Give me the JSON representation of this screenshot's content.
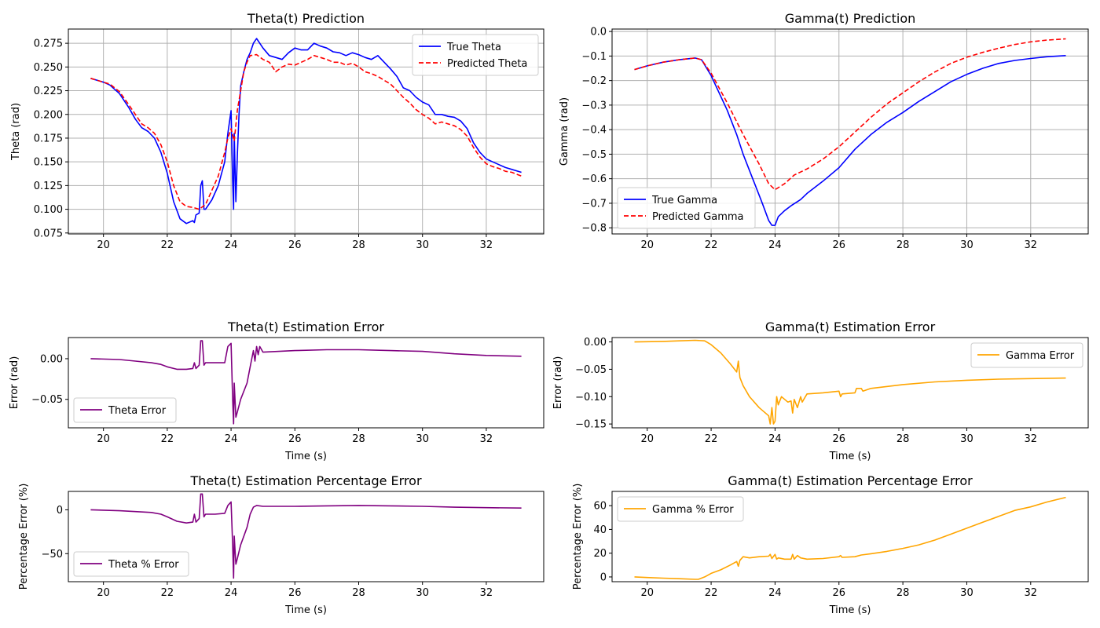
{
  "chart_data": [
    {
      "type": "line",
      "title": "Theta(t) Prediction",
      "xlabel": "",
      "ylabel": "Theta (rad)",
      "xlim": [
        18.9,
        33.8
      ],
      "ylim": [
        0.074,
        0.29
      ],
      "xticks": [
        20,
        22,
        24,
        26,
        28,
        30,
        32
      ],
      "yticks": [
        0.075,
        0.1,
        0.125,
        0.15,
        0.175,
        0.2,
        0.225,
        0.25,
        0.275
      ],
      "ytick_labels": [
        "0.075",
        "0.100",
        "0.125",
        "0.150",
        "0.175",
        "0.200",
        "0.225",
        "0.250",
        "0.275"
      ],
      "grid": true,
      "legend_position": "upper right",
      "series": [
        {
          "name": "True Theta",
          "color": "#0000ff",
          "style": "solid",
          "x": [
            19.6,
            20.0,
            20.2,
            20.5,
            20.8,
            21.0,
            21.2,
            21.4,
            21.6,
            21.8,
            22.0,
            22.2,
            22.4,
            22.6,
            22.8,
            22.85,
            22.9,
            23.0,
            23.05,
            23.1,
            23.15,
            23.2,
            23.4,
            23.6,
            23.8,
            23.9,
            24.0,
            24.05,
            24.08,
            24.1,
            24.15,
            24.2,
            24.25,
            24.3,
            24.4,
            24.5,
            24.6,
            24.7,
            24.8,
            24.9,
            25.0,
            25.2,
            25.4,
            25.6,
            25.8,
            26.0,
            26.2,
            26.4,
            26.6,
            26.8,
            27.0,
            27.2,
            27.4,
            27.6,
            27.8,
            28.0,
            28.2,
            28.4,
            28.6,
            28.8,
            29.0,
            29.2,
            29.4,
            29.6,
            29.8,
            30.0,
            30.2,
            30.4,
            30.6,
            30.8,
            31.0,
            31.2,
            31.4,
            31.6,
            31.8,
            32.0,
            32.2,
            32.4,
            32.6,
            32.8,
            33.1
          ],
          "y": [
            0.238,
            0.234,
            0.231,
            0.222,
            0.207,
            0.195,
            0.186,
            0.182,
            0.175,
            0.16,
            0.138,
            0.108,
            0.09,
            0.085,
            0.088,
            0.086,
            0.094,
            0.096,
            0.125,
            0.13,
            0.1,
            0.1,
            0.11,
            0.125,
            0.15,
            0.18,
            0.204,
            0.13,
            0.1,
            0.18,
            0.108,
            0.16,
            0.2,
            0.23,
            0.245,
            0.258,
            0.265,
            0.275,
            0.28,
            0.275,
            0.27,
            0.262,
            0.26,
            0.258,
            0.265,
            0.27,
            0.268,
            0.268,
            0.275,
            0.272,
            0.27,
            0.266,
            0.265,
            0.262,
            0.265,
            0.263,
            0.26,
            0.258,
            0.262,
            0.255,
            0.248,
            0.24,
            0.228,
            0.225,
            0.218,
            0.213,
            0.21,
            0.2,
            0.2,
            0.198,
            0.197,
            0.193,
            0.185,
            0.17,
            0.16,
            0.153,
            0.15,
            0.147,
            0.144,
            0.142,
            0.139
          ]
        },
        {
          "name": "Predicted Theta",
          "color": "#ff0000",
          "style": "dashed",
          "x": [
            19.6,
            20.0,
            20.2,
            20.5,
            20.8,
            21.0,
            21.2,
            21.4,
            21.6,
            21.8,
            22.0,
            22.2,
            22.4,
            22.6,
            22.8,
            23.0,
            23.2,
            23.4,
            23.6,
            23.8,
            23.9,
            24.0,
            24.1,
            24.2,
            24.3,
            24.4,
            24.5,
            24.6,
            24.8,
            25.0,
            25.2,
            25.4,
            25.6,
            25.8,
            26.0,
            26.2,
            26.4,
            26.6,
            26.8,
            27.0,
            27.2,
            27.4,
            27.6,
            27.8,
            28.0,
            28.2,
            28.4,
            28.6,
            28.8,
            29.0,
            29.2,
            29.4,
            29.6,
            29.8,
            30.0,
            30.2,
            30.4,
            30.6,
            30.8,
            31.0,
            31.2,
            31.4,
            31.6,
            31.8,
            32.0,
            32.2,
            32.4,
            32.6,
            32.8,
            33.1
          ],
          "y": [
            0.238,
            0.234,
            0.232,
            0.224,
            0.21,
            0.2,
            0.19,
            0.186,
            0.18,
            0.168,
            0.15,
            0.125,
            0.108,
            0.103,
            0.102,
            0.1,
            0.105,
            0.12,
            0.135,
            0.16,
            0.175,
            0.185,
            0.172,
            0.205,
            0.225,
            0.245,
            0.255,
            0.262,
            0.263,
            0.258,
            0.255,
            0.245,
            0.25,
            0.253,
            0.252,
            0.255,
            0.258,
            0.262,
            0.26,
            0.258,
            0.255,
            0.255,
            0.252,
            0.254,
            0.25,
            0.245,
            0.243,
            0.24,
            0.236,
            0.232,
            0.225,
            0.218,
            0.212,
            0.205,
            0.2,
            0.196,
            0.19,
            0.192,
            0.19,
            0.188,
            0.184,
            0.177,
            0.165,
            0.155,
            0.148,
            0.145,
            0.143,
            0.14,
            0.139,
            0.135
          ]
        }
      ]
    },
    {
      "type": "line",
      "title": "Gamma(t) Prediction",
      "xlabel": "",
      "ylabel": "Gamma (rad)",
      "xlim": [
        18.9,
        33.8
      ],
      "ylim": [
        -0.825,
        0.01
      ],
      "xticks": [
        20,
        22,
        24,
        26,
        28,
        30,
        32
      ],
      "yticks": [
        -0.8,
        -0.7,
        -0.6,
        -0.5,
        -0.4,
        -0.3,
        -0.2,
        -0.1,
        0.0
      ],
      "ytick_labels": [
        "−0.8",
        "−0.7",
        "−0.6",
        "−0.5",
        "−0.4",
        "−0.3",
        "−0.2",
        "−0.1",
        "0.0"
      ],
      "grid": true,
      "legend_position": "lower left",
      "series": [
        {
          "name": "True Gamma",
          "color": "#0000ff",
          "style": "solid",
          "x": [
            19.6,
            20.0,
            20.5,
            21.0,
            21.5,
            21.7,
            22.0,
            22.5,
            22.8,
            23.0,
            23.3,
            23.6,
            23.8,
            23.9,
            24.0,
            24.1,
            24.3,
            24.5,
            24.8,
            25.0,
            25.5,
            26.0,
            26.5,
            27.0,
            27.5,
            28.0,
            28.5,
            29.0,
            29.5,
            30.0,
            30.5,
            31.0,
            31.5,
            32.0,
            32.5,
            33.1
          ],
          "y": [
            -0.155,
            -0.14,
            -0.125,
            -0.115,
            -0.108,
            -0.115,
            -0.18,
            -0.32,
            -0.42,
            -0.5,
            -0.6,
            -0.7,
            -0.77,
            -0.79,
            -0.79,
            -0.755,
            -0.73,
            -0.71,
            -0.685,
            -0.66,
            -0.61,
            -0.555,
            -0.48,
            -0.42,
            -0.37,
            -0.33,
            -0.285,
            -0.245,
            -0.205,
            -0.175,
            -0.15,
            -0.13,
            -0.118,
            -0.11,
            -0.103,
            -0.098
          ]
        },
        {
          "name": "Predicted Gamma",
          "color": "#ff0000",
          "style": "dashed",
          "x": [
            19.6,
            20.0,
            20.5,
            21.0,
            21.5,
            21.7,
            22.0,
            22.5,
            23.0,
            23.5,
            23.8,
            24.0,
            24.3,
            24.6,
            25.0,
            25.5,
            26.0,
            26.5,
            27.0,
            27.5,
            28.0,
            28.5,
            29.0,
            29.5,
            30.0,
            30.5,
            31.0,
            31.5,
            32.0,
            32.5,
            33.1
          ],
          "y": [
            -0.155,
            -0.14,
            -0.125,
            -0.115,
            -0.108,
            -0.115,
            -0.17,
            -0.29,
            -0.42,
            -0.54,
            -0.62,
            -0.645,
            -0.62,
            -0.585,
            -0.56,
            -0.52,
            -0.47,
            -0.41,
            -0.35,
            -0.295,
            -0.25,
            -0.205,
            -0.165,
            -0.13,
            -0.105,
            -0.085,
            -0.068,
            -0.053,
            -0.042,
            -0.035,
            -0.03
          ]
        }
      ]
    },
    {
      "type": "line",
      "title": "Theta(t)  Estimation Error",
      "xlabel": "Time (s)",
      "ylabel": "Error (rad)",
      "xlim": [
        18.9,
        33.8
      ],
      "ylim": [
        -0.085,
        0.026
      ],
      "xticks": [
        20,
        22,
        24,
        26,
        28,
        30,
        32
      ],
      "yticks": [
        -0.05,
        0.0
      ],
      "ytick_labels": [
        "−0.05",
        "0.00"
      ],
      "grid": false,
      "legend_position": "lower left",
      "series": [
        {
          "name": "Theta Error",
          "color": "#800080",
          "style": "solid",
          "x": [
            19.6,
            20.5,
            21.0,
            21.5,
            21.8,
            22.0,
            22.3,
            22.6,
            22.8,
            22.85,
            22.9,
            23.0,
            23.05,
            23.1,
            23.15,
            23.2,
            23.5,
            23.8,
            23.9,
            24.0,
            24.05,
            24.08,
            24.1,
            24.15,
            24.2,
            24.3,
            24.5,
            24.6,
            24.7,
            24.75,
            24.8,
            24.85,
            24.9,
            25.0,
            25.5,
            26.0,
            27.0,
            28.0,
            29.0,
            30.0,
            31.0,
            32.0,
            33.1
          ],
          "y": [
            0.0,
            -0.001,
            -0.003,
            -0.005,
            -0.007,
            -0.01,
            -0.013,
            -0.013,
            -0.012,
            -0.005,
            -0.012,
            -0.008,
            0.022,
            0.022,
            -0.008,
            -0.005,
            -0.005,
            -0.005,
            0.015,
            0.019,
            -0.05,
            -0.08,
            -0.03,
            -0.072,
            -0.065,
            -0.05,
            -0.03,
            -0.01,
            0.01,
            -0.003,
            0.015,
            0.005,
            0.015,
            0.008,
            0.009,
            0.01,
            0.011,
            0.011,
            0.01,
            0.009,
            0.006,
            0.004,
            0.003
          ]
        }
      ]
    },
    {
      "type": "line",
      "title": "Gamma(t)  Estimation Error",
      "xlabel": "Time (s)",
      "ylabel": "Error (rad)",
      "xlim": [
        18.9,
        33.8
      ],
      "ylim": [
        -0.157,
        0.008
      ],
      "xticks": [
        20,
        22,
        24,
        26,
        28,
        30,
        32
      ],
      "yticks": [
        -0.15,
        -0.1,
        -0.05,
        0.0
      ],
      "ytick_labels": [
        "−0.15",
        "−0.10",
        "−0.05",
        "0.00"
      ],
      "grid": false,
      "legend_position": "upper right",
      "series": [
        {
          "name": "Gamma Error",
          "color": "#ffa500",
          "style": "solid",
          "x": [
            19.6,
            20.5,
            21.0,
            21.5,
            21.8,
            22.0,
            22.3,
            22.6,
            22.8,
            22.85,
            22.9,
            23.0,
            23.2,
            23.5,
            23.8,
            23.85,
            23.9,
            23.95,
            24.0,
            24.05,
            24.1,
            24.2,
            24.4,
            24.5,
            24.55,
            24.6,
            24.7,
            24.8,
            24.85,
            25.0,
            25.5,
            26.0,
            26.05,
            26.1,
            26.5,
            26.55,
            26.7,
            26.75,
            27.0,
            28.0,
            29.0,
            30.0,
            31.0,
            32.0,
            33.1
          ],
          "y": [
            0.0,
            0.001,
            0.002,
            0.003,
            0.002,
            -0.005,
            -0.02,
            -0.04,
            -0.055,
            -0.035,
            -0.065,
            -0.08,
            -0.1,
            -0.12,
            -0.135,
            -0.15,
            -0.12,
            -0.15,
            -0.145,
            -0.1,
            -0.115,
            -0.1,
            -0.11,
            -0.108,
            -0.13,
            -0.105,
            -0.12,
            -0.1,
            -0.11,
            -0.095,
            -0.093,
            -0.09,
            -0.1,
            -0.095,
            -0.093,
            -0.085,
            -0.085,
            -0.09,
            -0.085,
            -0.078,
            -0.073,
            -0.07,
            -0.068,
            -0.067,
            -0.066
          ]
        }
      ]
    },
    {
      "type": "line",
      "title": "Theta(t) Estimation Percentage Error",
      "xlabel": "Time (s)",
      "ylabel": "Percentage Error (%)",
      "xlim": [
        18.9,
        33.8
      ],
      "ylim": [
        -82,
        21
      ],
      "xticks": [
        20,
        22,
        24,
        26,
        28,
        30,
        32
      ],
      "yticks": [
        -50,
        0
      ],
      "ytick_labels": [
        "−50",
        "0"
      ],
      "grid": false,
      "legend_position": "lower left",
      "series": [
        {
          "name": "Theta % Error",
          "color": "#800080",
          "style": "solid",
          "x": [
            19.6,
            20.5,
            21.0,
            21.5,
            21.8,
            22.0,
            22.3,
            22.6,
            22.8,
            22.85,
            22.9,
            23.0,
            23.05,
            23.1,
            23.15,
            23.2,
            23.5,
            23.8,
            23.9,
            24.0,
            24.05,
            24.08,
            24.1,
            24.15,
            24.2,
            24.3,
            24.5,
            24.6,
            24.7,
            24.8,
            25.0,
            26.0,
            27.0,
            28.0,
            29.0,
            30.0,
            31.0,
            32.0,
            33.1
          ],
          "y": [
            0.0,
            -1.0,
            -2.0,
            -3.0,
            -5.0,
            -8.0,
            -13.0,
            -15.0,
            -14.0,
            -5.0,
            -14.0,
            -10.0,
            18.0,
            18.0,
            -8.0,
            -5.0,
            -5.0,
            -4.0,
            5.0,
            9.0,
            -40.0,
            -78.0,
            -30.0,
            -62.0,
            -55.0,
            -40.0,
            -20.0,
            -5.0,
            3.0,
            5.0,
            4.0,
            4.0,
            4.5,
            5.0,
            4.5,
            4.0,
            3.0,
            2.5,
            2.0
          ]
        }
      ]
    },
    {
      "type": "line",
      "title": "Gamma(t)  Estimation Percentage Error",
      "xlabel": "Time (s)",
      "ylabel": "Percentage Error (%)",
      "xlim": [
        18.9,
        33.8
      ],
      "ylim": [
        -4,
        72
      ],
      "xticks": [
        20,
        22,
        24,
        26,
        28,
        30,
        32
      ],
      "yticks": [
        0,
        20,
        40,
        60
      ],
      "ytick_labels": [
        "0",
        "20",
        "40",
        "60"
      ],
      "grid": false,
      "legend_position": "upper left",
      "series": [
        {
          "name": "Gamma % Error",
          "color": "#ffa500",
          "style": "solid",
          "x": [
            19.6,
            20.0,
            20.5,
            21.0,
            21.5,
            21.6,
            21.8,
            22.0,
            22.3,
            22.6,
            22.8,
            22.85,
            22.9,
            23.0,
            23.2,
            23.5,
            23.8,
            23.85,
            23.9,
            24.0,
            24.05,
            24.1,
            24.3,
            24.5,
            24.55,
            24.6,
            24.7,
            24.8,
            25.0,
            25.5,
            26.0,
            26.05,
            26.1,
            26.5,
            26.7,
            27.0,
            27.5,
            28.0,
            28.5,
            29.0,
            29.5,
            30.0,
            30.5,
            31.0,
            31.5,
            32.0,
            32.5,
            33.1
          ],
          "y": [
            0.0,
            -0.5,
            -1.0,
            -1.5,
            -2.0,
            -2.0,
            0.0,
            3.0,
            6.0,
            10.0,
            13.0,
            9.0,
            14.0,
            17.0,
            16.0,
            17.0,
            17.5,
            19.0,
            15.5,
            19.0,
            15.0,
            16.0,
            15.0,
            15.0,
            19.0,
            15.0,
            18.0,
            16.0,
            15.0,
            15.5,
            17.0,
            18.0,
            16.5,
            17.0,
            18.5,
            19.5,
            21.5,
            24.0,
            27.0,
            31.0,
            36.0,
            41.0,
            46.0,
            51.0,
            56.0,
            59.0,
            63.0,
            67.0
          ]
        }
      ]
    }
  ]
}
